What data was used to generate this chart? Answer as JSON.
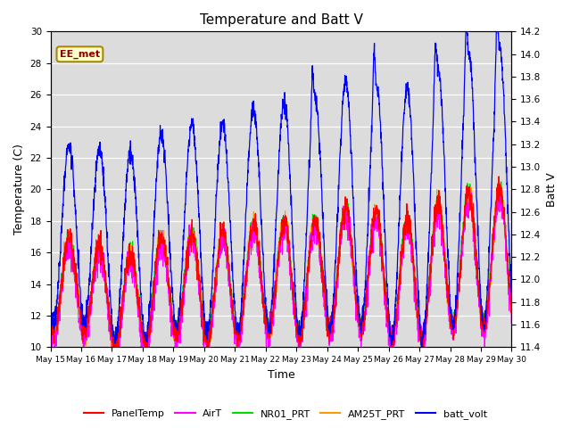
{
  "title": "Temperature and Batt V",
  "xlabel": "Time",
  "ylabel_left": "Temperature (C)",
  "ylabel_right": "Batt V",
  "annotation": "EE_met",
  "ylim_left": [
    10,
    30
  ],
  "ylim_right": [
    11.4,
    14.2
  ],
  "x_ticks_labels": [
    "May 15",
    "May 16",
    "May 17",
    "May 18",
    "May 19",
    "May 20",
    "May 21",
    "May 22",
    "May 23",
    "May 24",
    "May 25",
    "May 26",
    "May 27",
    "May 28",
    "May 29",
    "May 30"
  ],
  "background_color": "#dcdcdc",
  "series_colors": {
    "PanelTemp": "#ff0000",
    "AirT": "#ff00ff",
    "NR01_PRT": "#00dd00",
    "AM25T_PRT": "#ff9900",
    "batt_volt": "#0000ff"
  },
  "legend_entries": [
    "PanelTemp",
    "AirT",
    "NR01_PRT",
    "AM25T_PRT",
    "batt_volt"
  ],
  "num_days": 15,
  "pts_per_day": 144,
  "figwidth": 6.4,
  "figheight": 4.8,
  "dpi": 100
}
